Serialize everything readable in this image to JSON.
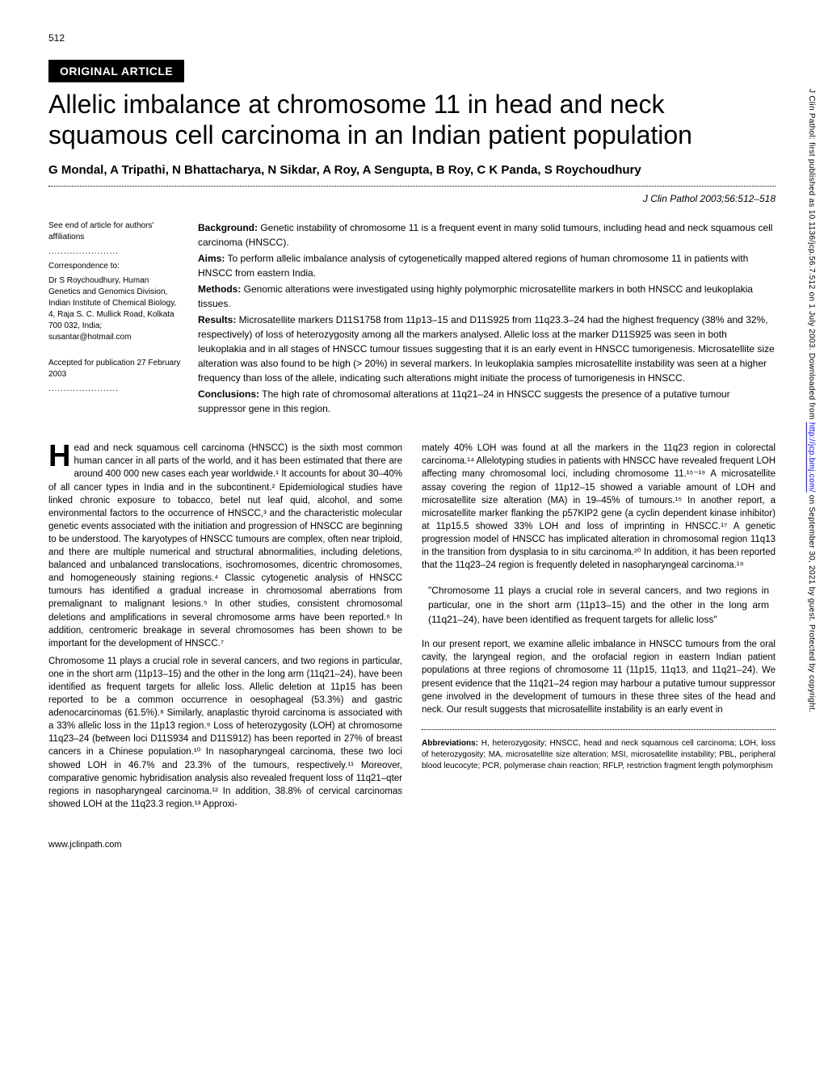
{
  "page_number": "512",
  "badge": "ORIGINAL ARTICLE",
  "title": "Allelic imbalance at chromosome 11 in head and neck squamous cell carcinoma in an Indian patient population",
  "authors": "G Mondal, A Tripathi, N Bhattacharya, N Sikdar, A Roy, A Sengupta, B Roy, C K Panda, S Roychoudhury",
  "citation": "J Clin Pathol 2003;56:512–518",
  "sidebar": {
    "see_end": "See end of article for authors' affiliations",
    "dots": ".......................",
    "correspondence_label": "Correspondence to:",
    "correspondence": "Dr S Roychoudhury, Human Genetics and Genomics Division, Indian Institute of Chemical Biology, 4, Raja S. C. Mullick Road, Kolkata 700 032, India; susantar@hotmail.com",
    "accepted": "Accepted for publication 27 February 2003"
  },
  "abstract": {
    "background_label": "Background:",
    "background": " Genetic instability of chromosome 11 is a frequent event in many solid tumours, including head and neck squamous cell carcinoma (HNSCC).",
    "aims_label": "Aims:",
    "aims": " To perform allelic imbalance analysis of cytogenetically mapped altered regions of human chromosome 11 in patients with HNSCC from eastern India.",
    "methods_label": "Methods:",
    "methods": " Genomic alterations were investigated using highly polymorphic microsatellite markers in both HNSCC and leukoplakia tissues.",
    "results_label": "Results:",
    "results": " Microsatellite markers D11S1758 from 11p13–15 and D11S925 from 11q23.3–24 had the highest frequency (38% and 32%, respectively) of loss of heterozygosity among all the markers analysed. Allelic loss at the marker D11S925 was seen in both leukoplakia and in all stages of HNSCC tumour tissues suggesting that it is an early event in HNSCC tumorigenesis. Microsatellite size alteration was also found to be high (> 20%) in several markers. In leukoplakia samples microsatellite instability was seen at a higher frequency than loss of the allele, indicating such alterations might initiate the process of tumorigenesis in HNSCC.",
    "conclusions_label": "Conclusions:",
    "conclusions": " The high rate of chromosomal alterations at 11q21–24 in HNSCC suggests the presence of a putative tumour suppressor gene in this region."
  },
  "body": {
    "col1": {
      "p1_start": "H",
      "p1": "ead and neck squamous cell carcinoma (HNSCC) is the sixth most common human cancer in all parts of the world, and it has been estimated that there are around 400 000 new cases each year worldwide.¹ It accounts for about 30–40% of all cancer types in India and in the subcontinent.² Epidemiological studies have linked chronic exposure to tobacco, betel nut leaf quid, alcohol, and some environmental factors to the occurrence of HNSCC,³ and the characteristic molecular genetic events associated with the initiation and progression of HNSCC are beginning to be understood. The karyotypes of HNSCC tumours are complex, often near triploid, and there are multiple numerical and structural abnormalities, including deletions, balanced and unbalanced translocations, isochromosomes, dicentric chromosomes, and homogeneously staining regions.⁴ Classic cytogenetic analysis of HNSCC tumours has identified a gradual increase in chromosomal aberrations from premalignant to malignant lesions.⁵ In other studies, consistent chromosomal deletions and amplifications in several chromosome arms have been reported.⁶ In addition, centromeric breakage in several chromosomes has been shown to be important for the development of HNSCC.⁷",
      "p2": "Chromosome 11 plays a crucial role in several cancers, and two regions in particular, one in the short arm (11p13–15) and the other in the long arm (11q21–24), have been identified as frequent targets for allelic loss. Allelic deletion at 11p15 has been reported to be a common occurrence in oesophageal (53.3%) and gastric adenocarcinomas (61.5%).⁸ Similarly, anaplastic thyroid carcinoma is associated with a 33% allelic loss in the 11p13 region.⁹ Loss of heterozygosity (LOH) at chromosome 11q23–24 (between loci D11S934 and D11S912) has been reported in 27% of breast cancers in a Chinese population.¹⁰ In nasopharyngeal carcinoma, these two loci showed LOH in 46.7% and 23.3% of the tumours, respectively.¹¹ Moreover, comparative genomic hybridisation analysis also revealed frequent loss of 11q21–qter regions in nasopharyngeal carcinoma.¹² In addition, 38.8% of cervical carcinomas showed LOH at the 11q23.3 region.¹³ Approxi-"
    },
    "col2": {
      "p1": "mately 40% LOH was found at all the markers in the 11q23 region in colorectal carcinoma.¹⁴ Allelotyping studies in patients with HNSCC have revealed frequent LOH affecting many chromosomal loci, including chromosome 11.¹⁵⁻¹⁹ A microsatellite assay covering the region of 11p12–15 showed a variable amount of LOH and microsatellite size alteration (MA) in 19–45% of tumours.¹⁵ In another report, a microsatellite marker flanking the p57KIP2 gene (a cyclin dependent kinase inhibitor) at 11p15.5 showed 33% LOH and loss of imprinting in HNSCC.¹⁷ A genetic progression model of HNSCC has implicated alteration in chromosomal region 11q13 in the transition from dysplasia to in situ carcinoma.²⁰ In addition, it has been reported that the 11q23–24 region is frequently deleted in nasopharyngeal carcinoma.¹⁹",
      "quote": "\"Chromosome 11 plays a crucial role in several cancers, and two regions in particular, one in the short arm (11p13–15) and the other in the long arm (11q21–24), have been identified as frequent targets for allelic loss\"",
      "p2": "In our present report, we examine allelic imbalance in HNSCC tumours from the oral cavity, the laryngeal region, and the orofacial region in eastern Indian patient populations at three regions of chromosome 11 (11p15, 11q13, and 11q21–24). We present evidence that the 11q21–24 region may harbour a putative tumour suppressor gene involved in the development of tumours in these three sites of the head and neck. Our result suggests that microsatellite instability is an early event in",
      "abbrev_label": "Abbreviations:",
      "abbrev": " H, heterozygosity; HNSCC, head and neck squamous cell carcinoma; LOH, loss of heterozygosity; MA, microsatellite size alteration; MSI, microsatellite instability; PBL, peripheral blood leucocyte; PCR, polymerase chain reaction; RFLP, restriction fragment length polymorphism"
    }
  },
  "footer_url": "www.jclinpath.com",
  "side_text_1": "J Clin Pathol: first published as 10.1136/jcp.56.7.512 on 1 July 2003. Downloaded from ",
  "side_link": "http://jcp.bmj.com/",
  "side_text_2": " on September 30, 2021 by guest. Protected by copyright."
}
